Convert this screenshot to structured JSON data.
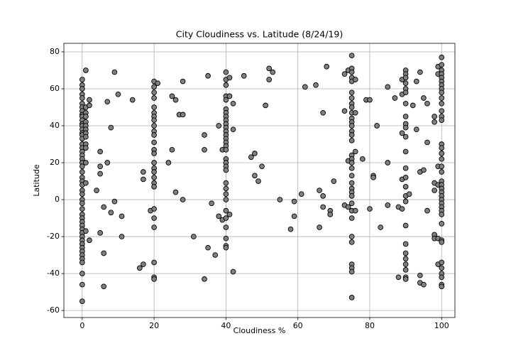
{
  "chart_data": {
    "type": "scatter",
    "title": "City Cloudiness vs. Latitude (8/24/19)",
    "x_label": "Cloudiness %",
    "y_label": "Latitude",
    "xlim": [
      -5.1,
      103.7
    ],
    "ylim": [
      -63.8,
      84.6
    ],
    "xticks": [
      0,
      20,
      40,
      60,
      80,
      100
    ],
    "yticks": [
      -60,
      -40,
      -20,
      0,
      20,
      40,
      60,
      80
    ],
    "grid": true,
    "color": "#808080",
    "edgecolor": "#000000",
    "x": [
      0,
      0,
      0,
      0,
      0,
      0,
      0,
      0,
      0,
      0,
      0,
      0,
      0,
      0,
      0,
      0,
      0,
      0,
      0,
      0,
      0,
      0,
      0,
      0,
      0,
      0,
      0,
      0,
      0,
      0,
      0,
      0,
      0,
      0,
      0,
      0,
      0,
      0,
      0,
      0,
      0,
      0,
      0,
      0,
      0,
      0,
      0,
      0,
      0,
      0,
      1,
      1,
      1,
      1,
      1,
      1,
      1,
      1,
      1,
      1,
      1,
      1,
      1,
      1,
      2,
      2,
      2,
      4,
      5,
      5,
      5,
      5,
      6,
      6,
      6,
      7,
      7,
      8,
      8,
      9,
      9,
      10,
      11,
      11,
      14,
      16,
      17,
      17,
      17,
      19,
      20,
      20,
      20,
      20,
      20,
      20,
      20,
      20,
      20,
      20,
      20,
      20,
      20,
      20,
      20,
      20,
      20,
      20,
      20,
      20,
      20,
      20,
      20,
      20,
      20,
      20,
      21,
      24,
      25,
      25,
      26,
      26,
      27,
      28,
      28,
      28,
      31,
      34,
      34,
      34,
      35,
      35,
      36,
      37,
      38,
      38,
      39,
      39,
      40,
      40,
      40,
      40,
      40,
      40,
      40,
      40,
      40,
      40,
      40,
      40,
      40,
      40,
      40,
      40,
      40,
      40,
      40,
      40,
      40,
      40,
      40,
      40,
      40,
      40,
      40,
      40,
      40,
      40,
      40,
      41,
      41,
      41,
      42,
      42,
      42,
      45,
      47,
      48,
      48,
      49,
      50,
      51,
      52,
      52,
      53,
      55,
      58,
      59,
      59,
      61,
      62,
      65,
      66,
      66,
      67,
      67,
      67,
      68,
      69,
      69,
      70,
      73,
      73,
      73,
      74,
      74,
      74,
      75,
      75,
      75,
      75,
      75,
      75,
      75,
      75,
      75,
      75,
      75,
      75,
      75,
      75,
      75,
      75,
      75,
      75,
      75,
      75,
      75,
      75,
      75,
      75,
      75,
      75,
      75,
      75,
      75,
      75,
      75,
      75,
      75,
      75,
      76,
      76,
      76,
      76,
      78,
      79,
      80,
      80,
      81,
      81,
      82,
      83,
      85,
      85,
      85,
      87,
      88,
      88,
      89,
      89,
      89,
      89,
      89,
      90,
      90,
      90,
      90,
      90,
      90,
      90,
      90,
      90,
      90,
      90,
      90,
      90,
      90,
      90,
      90,
      90,
      90,
      90,
      90,
      90,
      90,
      90,
      90,
      90,
      91,
      92,
      93,
      93,
      94,
      94,
      94,
      94,
      95,
      95,
      95,
      96,
      96,
      96,
      98,
      98,
      98,
      98,
      98,
      98,
      99,
      99,
      99,
      99,
      99,
      99,
      100,
      100,
      100,
      100,
      100,
      100,
      100,
      100,
      100,
      100,
      100,
      100,
      100,
      100,
      100,
      100,
      100,
      100,
      100,
      100,
      100,
      100,
      100,
      100,
      100,
      100,
      100,
      100,
      100,
      100,
      100,
      100,
      100,
      100,
      100,
      100,
      100,
      100,
      100
    ],
    "y": [
      65,
      62,
      60,
      57,
      55,
      52,
      50,
      48,
      46,
      45,
      43,
      41,
      40,
      38,
      36,
      35,
      33,
      30,
      28,
      26,
      24,
      22,
      20,
      18,
      15,
      12,
      10,
      8,
      5,
      3,
      0,
      -2,
      -5,
      -8,
      -10,
      -12,
      -14,
      -16,
      -18,
      -20,
      -22,
      -24,
      -26,
      -28,
      -30,
      -32,
      -34,
      -40,
      -46,
      -55,
      70,
      50,
      47,
      45,
      42,
      40,
      38,
      36,
      34,
      30,
      28,
      20,
      9,
      -17,
      54,
      51,
      -22,
      5,
      26,
      18,
      14,
      -18,
      -4,
      -29,
      -47,
      53,
      20,
      39,
      -7,
      69,
      -1,
      57,
      -9,
      -20,
      54,
      -37,
      15,
      11,
      -35,
      -6,
      64,
      61,
      58,
      55,
      50,
      47,
      45,
      43,
      40,
      37,
      35,
      31,
      27,
      25,
      20,
      17,
      15,
      12,
      9,
      7,
      -5,
      -10,
      -15,
      -34,
      -42,
      -43,
      63,
      20,
      56,
      27,
      54,
      4,
      46,
      64,
      46,
      0,
      -20,
      35,
      27,
      -43,
      67,
      -26,
      -2,
      -30,
      40,
      -9,
      27,
      -11,
      69,
      65,
      62,
      56,
      54,
      49,
      47,
      45,
      43,
      41,
      39,
      37,
      35,
      33,
      31,
      29,
      27,
      22,
      20,
      18,
      16,
      9,
      6,
      3,
      0,
      -6,
      -10,
      -15,
      -21,
      -25,
      -26,
      66,
      56,
      -8,
      52,
      38,
      -39,
      67,
      23,
      25,
      13,
      10,
      18,
      51,
      71,
      65,
      69,
      0,
      -16,
      -1,
      -9,
      3,
      61,
      62,
      5,
      -15,
      47,
      2,
      -4,
      72,
      -6,
      -8,
      10,
      68,
      48,
      -3,
      21,
      -4,
      70,
      78,
      71,
      69,
      66,
      64,
      58,
      55,
      52,
      50,
      47,
      44,
      42,
      40,
      37,
      35,
      32,
      24,
      22,
      20,
      17,
      13,
      9,
      6,
      4,
      2,
      -2,
      -6,
      -10,
      -20,
      -23,
      -35,
      -37,
      -39,
      -53,
      65,
      47,
      26,
      -6,
      22,
      54,
      54,
      -5,
      13,
      12,
      40,
      -15,
      61,
      20,
      -3,
      55,
      -4,
      -42,
      65,
      57,
      36,
      11,
      -5,
      70,
      68,
      66,
      63,
      60,
      58,
      52,
      45,
      41,
      39,
      34,
      26,
      17,
      12,
      7,
      2,
      -1,
      -14,
      -24,
      -29,
      -32,
      -35,
      -38,
      -42,
      -43,
      3,
      51,
      64,
      38,
      69,
      15,
      -41,
      -45,
      55,
      16,
      -46,
      52,
      31,
      -6,
      45,
      42,
      9,
      5,
      -19,
      -21,
      72,
      68,
      18,
      8,
      -21,
      -35,
      77,
      73,
      70,
      68,
      66,
      64,
      62,
      60,
      58,
      55,
      52,
      48,
      45,
      43,
      30,
      28,
      25,
      22,
      18,
      15,
      10,
      8,
      6,
      4,
      2,
      0,
      -2,
      -4,
      -6,
      -8,
      -13,
      -22,
      -23,
      -34,
      -37,
      -40,
      -42,
      -46,
      -47
    ]
  }
}
